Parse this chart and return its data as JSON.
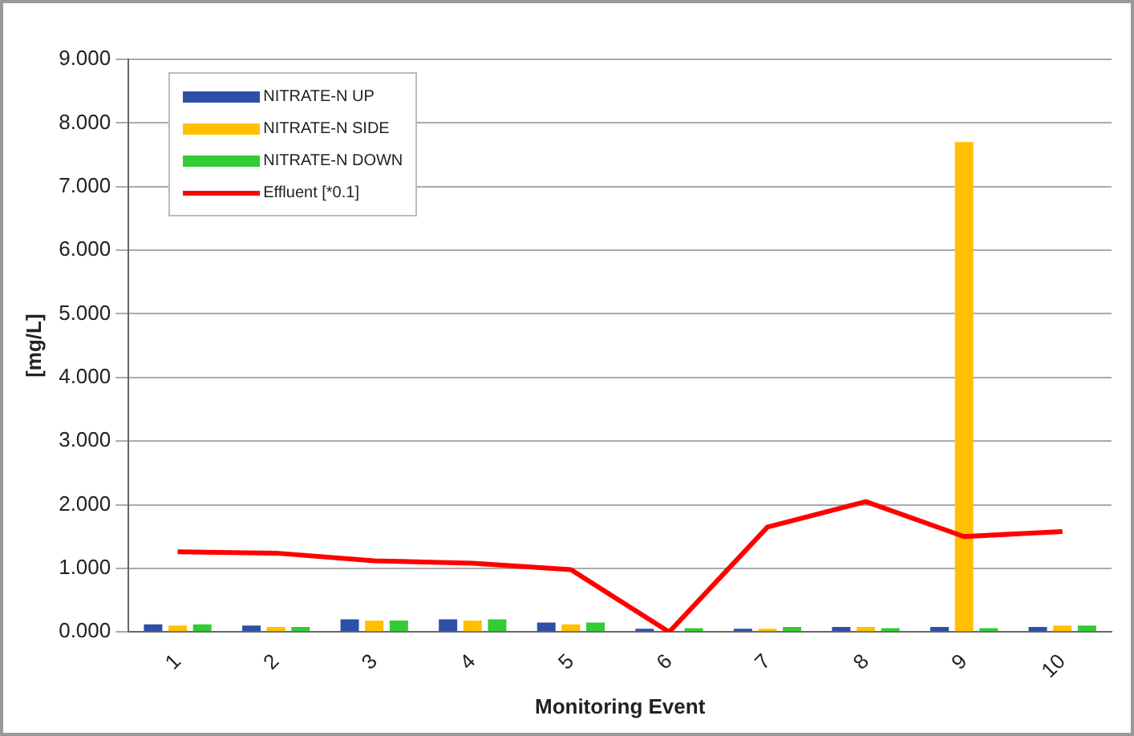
{
  "chart_data": {
    "type": "bar",
    "xlabel": "Monitoring Event",
    "ylabel": "[mg/L]",
    "categories": [
      "1",
      "2",
      "3",
      "4",
      "5",
      "6",
      "7",
      "8",
      "9",
      "10"
    ],
    "series": [
      {
        "name": "NITRATE-N UP",
        "color": "#2e4fa8",
        "values": [
          0.12,
          0.1,
          0.2,
          0.2,
          0.15,
          0.05,
          0.05,
          0.08,
          0.08,
          0.08
        ]
      },
      {
        "name": "NITRATE-N SIDE",
        "color": "#ffc000",
        "values": [
          0.1,
          0.08,
          0.18,
          0.18,
          0.12,
          null,
          0.05,
          0.08,
          7.7,
          0.1
        ]
      },
      {
        "name": "NITRATE-N DOWN",
        "color": "#33cc33",
        "values": [
          0.12,
          0.08,
          0.18,
          0.2,
          0.15,
          0.06,
          0.08,
          0.06,
          0.06,
          0.1
        ]
      },
      {
        "name": "Effluent [*0.1]",
        "type": "line",
        "color": "#ff0000",
        "marker": "none",
        "values": [
          1.26,
          1.24,
          1.12,
          1.08,
          0.98,
          0,
          1.65,
          2.05,
          1.5,
          1.58
        ]
      }
    ],
    "ylim": [
      0,
      9
    ],
    "yticks": [
      {
        "value": 0,
        "label": "0.000"
      },
      {
        "value": 1,
        "label": "1.000"
      },
      {
        "value": 2,
        "label": "2.000"
      },
      {
        "value": 3,
        "label": "3.000"
      },
      {
        "value": 4,
        "label": "4.000"
      },
      {
        "value": 5,
        "label": "5.000"
      },
      {
        "value": 6,
        "label": "6.000"
      },
      {
        "value": 7,
        "label": "7.000"
      },
      {
        "value": 8,
        "label": "8.000"
      },
      {
        "value": 9,
        "label": "9.000"
      }
    ],
    "grid": "y",
    "legend": "top left"
  }
}
